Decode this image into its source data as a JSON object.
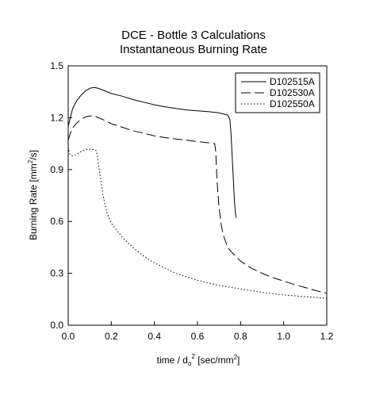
{
  "chart_data": {
    "type": "line",
    "title": [
      "DCE - Bottle 3 Calculations",
      "Instantaneous Burning Rate"
    ],
    "xlabel": {
      "pre": "time / d",
      "sub": "o",
      "sup": "2",
      "post": " [sec/mm",
      "sup2": "2",
      "end": "]"
    },
    "ylabel": {
      "pre": "Burning Rate [mm",
      "sup": "2",
      "post": "/s]"
    },
    "xlim": [
      0.0,
      1.2
    ],
    "ylim": [
      0.0,
      1.5
    ],
    "xticks": [
      "0.0",
      "0.2",
      "0.4",
      "0.6",
      "0.8",
      "1.0",
      "1.2"
    ],
    "yticks": [
      "0.0",
      "0.3",
      "0.6",
      "0.9",
      "1.2",
      "1.5"
    ],
    "grid": false,
    "legend_position": "top-right",
    "series": [
      {
        "name": "D102515A",
        "dash": "solid",
        "x": [
          0.0,
          0.01,
          0.02,
          0.04,
          0.06,
          0.08,
          0.1,
          0.12,
          0.14,
          0.16,
          0.2,
          0.25,
          0.3,
          0.35,
          0.4,
          0.45,
          0.5,
          0.55,
          0.6,
          0.65,
          0.7,
          0.72,
          0.74,
          0.745,
          0.75,
          0.755,
          0.76,
          0.765,
          0.77,
          0.775,
          0.78
        ],
        "y": [
          1.15,
          1.2,
          1.25,
          1.3,
          1.33,
          1.355,
          1.37,
          1.375,
          1.37,
          1.36,
          1.34,
          1.325,
          1.305,
          1.29,
          1.275,
          1.263,
          1.253,
          1.245,
          1.24,
          1.235,
          1.228,
          1.222,
          1.215,
          1.205,
          1.19,
          1.12,
          1.0,
          0.88,
          0.75,
          0.66,
          0.62
        ]
      },
      {
        "name": "D102530A",
        "dash": "long-dash",
        "x": [
          0.0,
          0.01,
          0.02,
          0.04,
          0.06,
          0.08,
          0.1,
          0.12,
          0.14,
          0.16,
          0.2,
          0.25,
          0.3,
          0.35,
          0.4,
          0.45,
          0.5,
          0.55,
          0.6,
          0.65,
          0.68,
          0.685,
          0.69,
          0.7,
          0.71,
          0.72,
          0.74,
          0.76,
          0.8,
          0.85,
          0.9,
          0.95,
          1.0,
          1.05,
          1.1,
          1.15,
          1.2
        ],
        "y": [
          1.07,
          1.11,
          1.14,
          1.17,
          1.19,
          1.205,
          1.21,
          1.21,
          1.2,
          1.19,
          1.165,
          1.145,
          1.125,
          1.11,
          1.095,
          1.085,
          1.077,
          1.07,
          1.062,
          1.055,
          1.05,
          1.0,
          0.85,
          0.68,
          0.58,
          0.52,
          0.45,
          0.42,
          0.37,
          0.33,
          0.3,
          0.275,
          0.255,
          0.235,
          0.218,
          0.2,
          0.185
        ]
      },
      {
        "name": "D102550A",
        "dash": "dotted",
        "x": [
          0.0,
          0.005,
          0.01,
          0.02,
          0.03,
          0.04,
          0.06,
          0.08,
          0.1,
          0.12,
          0.13,
          0.135,
          0.14,
          0.15,
          0.16,
          0.18,
          0.2,
          0.25,
          0.3,
          0.35,
          0.4,
          0.5,
          0.6,
          0.7,
          0.8,
          0.9,
          1.0,
          1.1,
          1.2
        ],
        "y": [
          1.03,
          1.0,
          0.985,
          0.98,
          0.985,
          0.99,
          1.005,
          1.015,
          1.018,
          1.015,
          1.01,
          0.98,
          0.93,
          0.85,
          0.76,
          0.65,
          0.59,
          0.51,
          0.45,
          0.4,
          0.36,
          0.3,
          0.26,
          0.23,
          0.21,
          0.19,
          0.175,
          0.165,
          0.155
        ]
      }
    ]
  }
}
